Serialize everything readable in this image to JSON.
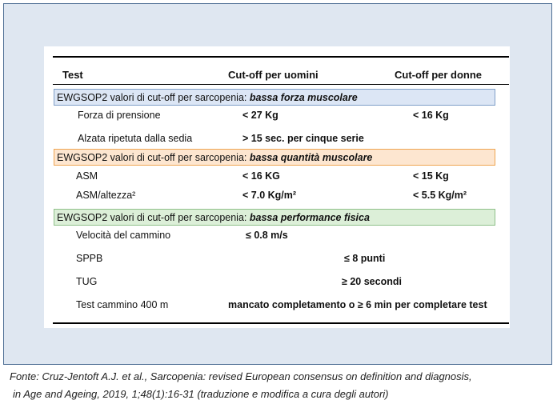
{
  "table": {
    "header": [
      "Test",
      "Cut-off per uomini",
      "Cut-off per donne"
    ],
    "sections": [
      {
        "title": "EWGSOP2  valori di cut-off per sarcopenia:",
        "emphasis": "bassa forza muscolare",
        "rows": [
          {
            "test": "Forza di prensione",
            "men": "< 27 Kg",
            "women": "< 16 Kg"
          },
          {
            "test": "Alzata ripetuta dalla sedia",
            "men": "> 15 sec. per cinque serie"
          }
        ]
      },
      {
        "title": "EWGSOP2  valori di cut-off per sarcopenia:",
        "emphasis": "bassa quantità muscolare",
        "rows": [
          {
            "test": "ASM",
            "men": "< 16 KG",
            "women": "< 15 Kg"
          },
          {
            "test": "ASM/altezza²",
            "men": "< 7.0 Kg/m²",
            "women": "< 5.5 Kg/m²"
          }
        ]
      },
      {
        "title": "EWGSOP2  valori di cut-off per sarcopenia:",
        "emphasis": "bassa performance fisica",
        "rows": [
          {
            "test": "Velocità del cammino",
            "men": "≤ 0.8 m/s"
          },
          {
            "test": "SPPB",
            "all": "≤ 8 punti"
          },
          {
            "test": "TUG",
            "all": "≥ 20 secondi"
          },
          {
            "test": "Test cammino 400 m",
            "all": "mancato completamento o ≥ 6 min per completare test"
          }
        ]
      }
    ]
  },
  "caption": [
    "Fonte: Cruz-Jentoft A.J. et al., Sarcopenia: revised European consensus on definition and diagnosis,",
    "in Age and Ageing, 2019, 1;48(1):16-31 (traduzione e modifica a cura degli autori)"
  ]
}
